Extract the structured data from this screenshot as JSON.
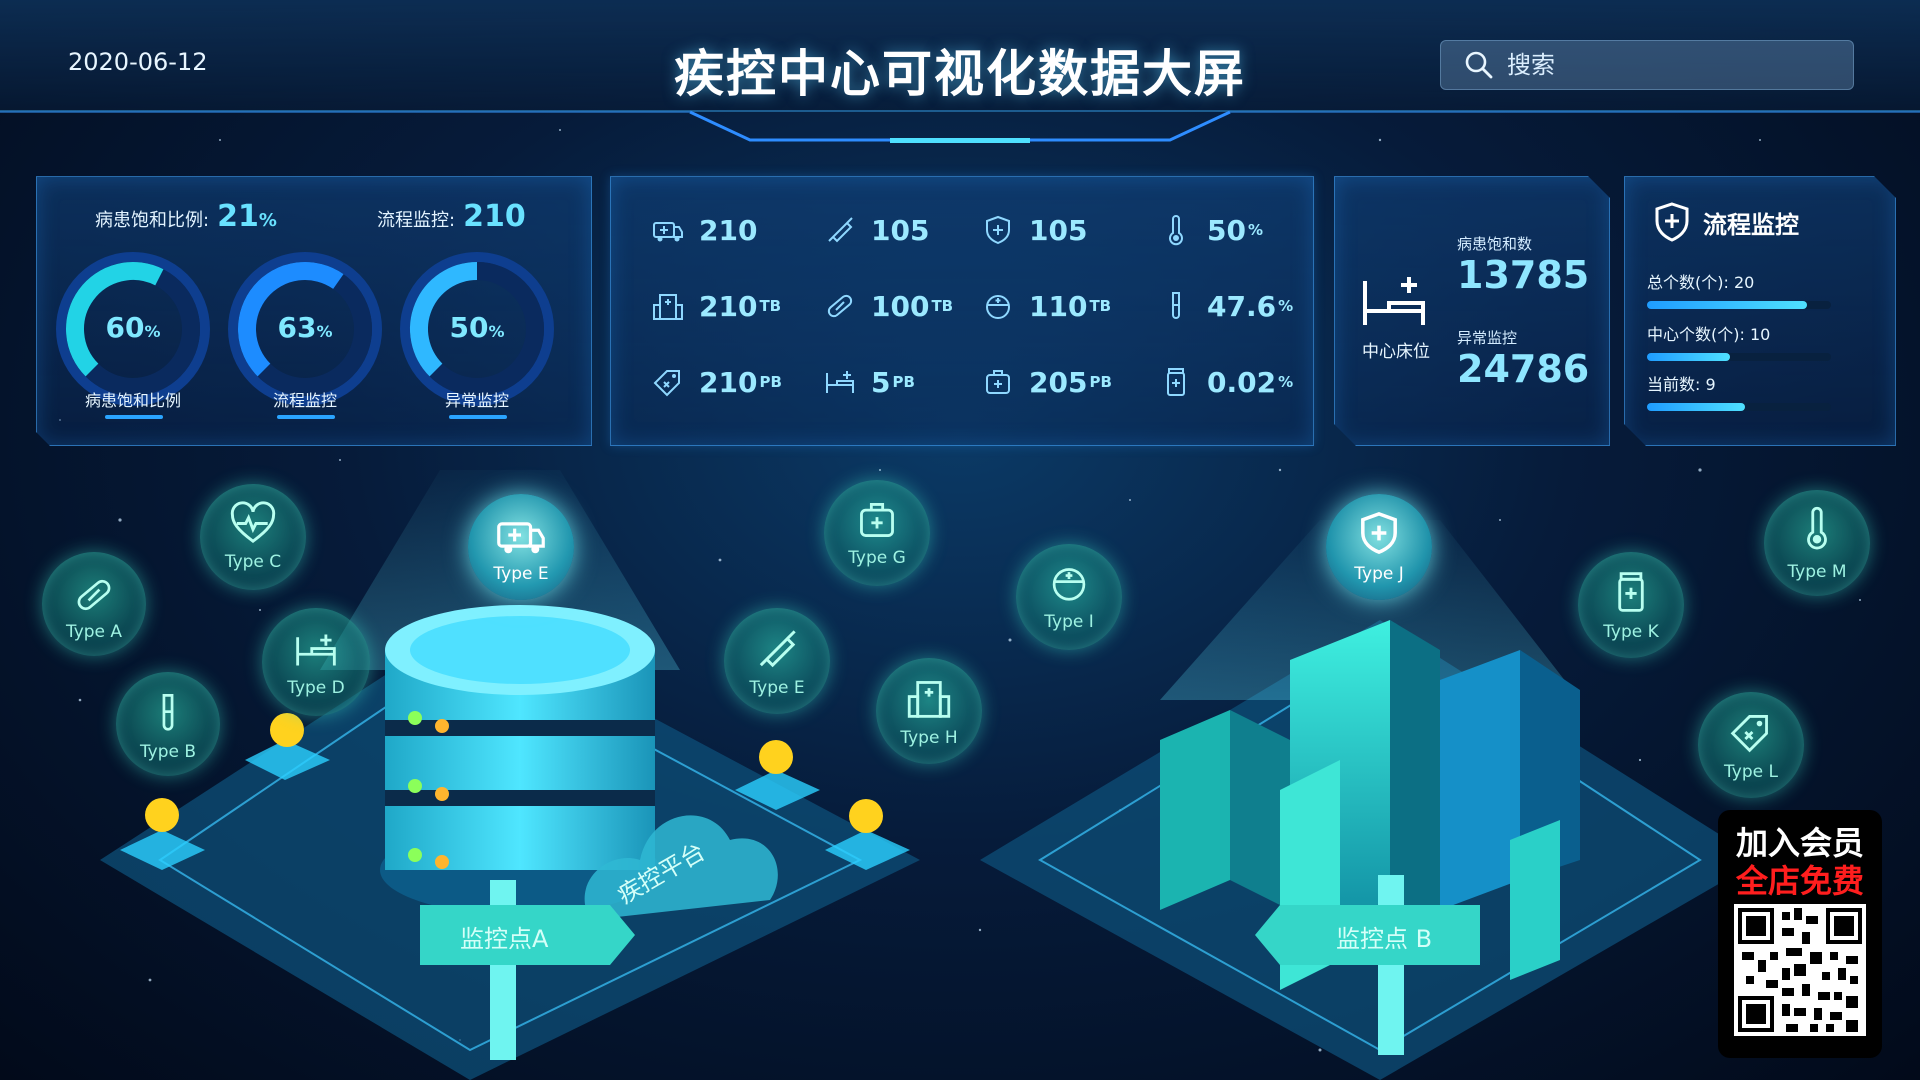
{
  "header": {
    "date": "2020-06-12",
    "title": "疾控中心可视化数据大屏",
    "search_placeholder": "搜索"
  },
  "panel_rate": {
    "ratio_label": "病患饱和比例:",
    "ratio_value": "21",
    "ratio_unit": "%",
    "process_label": "流程监控:",
    "process_value": "210",
    "gauges": [
      {
        "value": "60",
        "unit": "%",
        "label": "病患饱和比例",
        "fraction": 0.6
      },
      {
        "value": "63",
        "unit": "%",
        "label": "流程监控",
        "fraction": 0.63
      },
      {
        "value": "50",
        "unit": "%",
        "label": "异常监控",
        "fraction": 0.5
      }
    ]
  },
  "panel_stats": {
    "items": [
      {
        "icon": "ambulance-icon",
        "value": "210",
        "unit": ""
      },
      {
        "icon": "syringe-icon",
        "value": "105",
        "unit": ""
      },
      {
        "icon": "shield-plus-icon",
        "value": "105",
        "unit": ""
      },
      {
        "icon": "thermometer-icon",
        "value": "50",
        "unit": "%"
      },
      {
        "icon": "hospital-icon",
        "value": "210",
        "unit": "TB"
      },
      {
        "icon": "pill-icon",
        "value": "100",
        "unit": "TB"
      },
      {
        "icon": "nurse-icon",
        "value": "110",
        "unit": "TB"
      },
      {
        "icon": "test-tube-icon",
        "value": "47.6",
        "unit": "%"
      },
      {
        "icon": "tag-icon",
        "value": "210",
        "unit": "PB"
      },
      {
        "icon": "bed-icon",
        "value": "5",
        "unit": "PB"
      },
      {
        "icon": "medkit-icon",
        "value": "205",
        "unit": "PB"
      },
      {
        "icon": "medicine-bottle-icon",
        "value": "0.02",
        "unit": "%"
      }
    ]
  },
  "panel_beds": {
    "label": "中心床位",
    "patients_label": "病患饱和数",
    "patients_value": "13785",
    "abnormal_label": "异常监控",
    "abnormal_value": "24786"
  },
  "panel_process": {
    "title": "流程监控",
    "items": [
      {
        "label": "总个数(个): 20",
        "fraction": 0.87
      },
      {
        "label": "中心个数(个): 10",
        "fraction": 0.45
      },
      {
        "label": "当前数: 9",
        "fraction": 0.53
      }
    ]
  },
  "scene": {
    "bubbles": [
      {
        "label": "Type A",
        "icon": "pill-icon"
      },
      {
        "label": "Type B",
        "icon": "test-tube-icon"
      },
      {
        "label": "Type C",
        "icon": "heart-pulse-icon"
      },
      {
        "label": "Type D",
        "icon": "bed-icon"
      },
      {
        "label": "Type E",
        "icon": "ambulance-icon"
      },
      {
        "label": "Type E",
        "icon": "syringe-icon"
      },
      {
        "label": "Type G",
        "icon": "medkit-icon"
      },
      {
        "label": "Type H",
        "icon": "hospital-icon"
      },
      {
        "label": "Type I",
        "icon": "nurse-icon"
      },
      {
        "label": "Type J",
        "icon": "shield-plus-icon"
      },
      {
        "label": "Type K",
        "icon": "medicine-bottle-icon"
      },
      {
        "label": "Type L",
        "icon": "tag-icon"
      },
      {
        "label": "Type M",
        "icon": "thermometer-icon"
      }
    ],
    "cloud_label": "疾控平台",
    "sign_a": "监控点A",
    "sign_b": "监控点 B"
  },
  "promo": {
    "line1": "加入会员",
    "line2": "全店免费"
  },
  "colors": {
    "accent": "#69e2ff",
    "bubble": "#2ed2b4",
    "promo_red": "#ff1e1e"
  }
}
